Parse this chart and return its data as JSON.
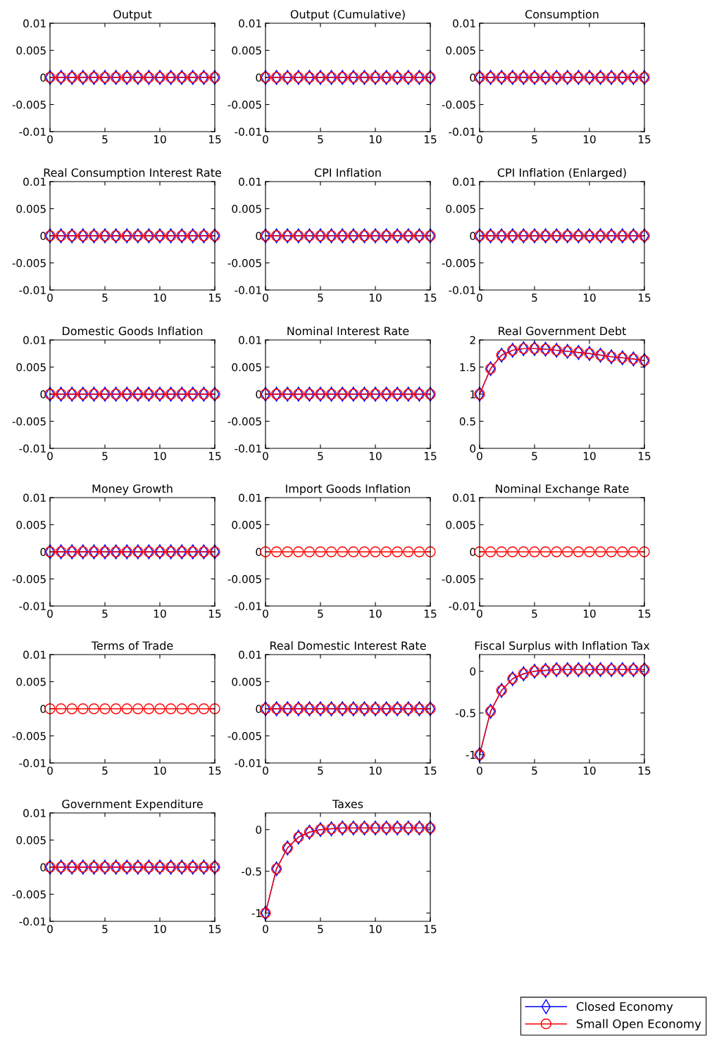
{
  "chart_data": [
    {
      "type": "line",
      "title": "Output",
      "x": [
        0,
        1,
        2,
        3,
        4,
        5,
        6,
        7,
        8,
        9,
        10,
        11,
        12,
        13,
        14,
        15
      ],
      "xlim": [
        0,
        15
      ],
      "xticks": [
        0,
        5,
        10,
        15
      ],
      "ylim": [
        -0.01,
        0.01
      ],
      "yticks": [
        -0.01,
        -0.005,
        0,
        0.005,
        0.01
      ],
      "line_style": "solid",
      "legend": "bottom right",
      "series": [
        {
          "name": "Closed Economy",
          "color": "#0000ff",
          "marker": "diamond",
          "values": [
            0,
            0,
            0,
            0,
            0,
            0,
            0,
            0,
            0,
            0,
            0,
            0,
            0,
            0,
            0,
            0
          ]
        },
        {
          "name": "Small Open Economy",
          "color": "#ff0000",
          "marker": "circle",
          "values": [
            0,
            0,
            0,
            0,
            0,
            0,
            0,
            0,
            0,
            0,
            0,
            0,
            0,
            0,
            0,
            0
          ]
        }
      ]
    },
    {
      "type": "line",
      "title": "Output (Cumulative)",
      "x": [
        0,
        1,
        2,
        3,
        4,
        5,
        6,
        7,
        8,
        9,
        10,
        11,
        12,
        13,
        14,
        15
      ],
      "xlim": [
        0,
        15
      ],
      "xticks": [
        0,
        5,
        10,
        15
      ],
      "ylim": [
        -0.01,
        0.01
      ],
      "yticks": [
        -0.01,
        -0.005,
        0,
        0.005,
        0.01
      ],
      "line_style": "solid",
      "series": [
        {
          "color": "#0000ff",
          "marker": "diamond",
          "values": [
            0,
            0,
            0,
            0,
            0,
            0,
            0,
            0,
            0,
            0,
            0,
            0,
            0,
            0,
            0,
            0
          ]
        },
        {
          "color": "#ff0000",
          "marker": "circle",
          "values": [
            0,
            0,
            0,
            0,
            0,
            0,
            0,
            0,
            0,
            0,
            0,
            0,
            0,
            0,
            0,
            0
          ]
        }
      ]
    },
    {
      "type": "line",
      "title": "Consumption",
      "x": [
        0,
        1,
        2,
        3,
        4,
        5,
        6,
        7,
        8,
        9,
        10,
        11,
        12,
        13,
        14,
        15
      ],
      "xlim": [
        0,
        15
      ],
      "xticks": [
        0,
        5,
        10,
        15
      ],
      "ylim": [
        -0.01,
        0.01
      ],
      "yticks": [
        -0.01,
        -0.005,
        0,
        0.005,
        0.01
      ],
      "line_style": "solid",
      "series": [
        {
          "color": "#0000ff",
          "marker": "diamond",
          "values": [
            0,
            0,
            0,
            0,
            0,
            0,
            0,
            0,
            0,
            0,
            0,
            0,
            0,
            0,
            0,
            0
          ]
        },
        {
          "color": "#ff0000",
          "marker": "circle",
          "values": [
            0,
            0,
            0,
            0,
            0,
            0,
            0,
            0,
            0,
            0,
            0,
            0,
            0,
            0,
            0,
            0
          ]
        }
      ]
    },
    {
      "type": "line",
      "title": "Real Consumption Interest Rate",
      "x": [
        0,
        1,
        2,
        3,
        4,
        5,
        6,
        7,
        8,
        9,
        10,
        11,
        12,
        13,
        14,
        15
      ],
      "xlim": [
        0,
        15
      ],
      "xticks": [
        0,
        5,
        10,
        15
      ],
      "ylim": [
        -0.01,
        0.01
      ],
      "yticks": [
        -0.01,
        -0.005,
        0,
        0.005,
        0.01
      ],
      "line_style": "solid",
      "series": [
        {
          "color": "#0000ff",
          "marker": "diamond",
          "values": [
            0,
            0,
            0,
            0,
            0,
            0,
            0,
            0,
            0,
            0,
            0,
            0,
            0,
            0,
            0,
            0
          ]
        },
        {
          "color": "#ff0000",
          "marker": "circle",
          "values": [
            0,
            0,
            0,
            0,
            0,
            0,
            0,
            0,
            0,
            0,
            0,
            0,
            0,
            0,
            0,
            0
          ]
        }
      ]
    },
    {
      "type": "line",
      "title": "CPI Inflation",
      "x": [
        0,
        1,
        2,
        3,
        4,
        5,
        6,
        7,
        8,
        9,
        10,
        11,
        12,
        13,
        14,
        15
      ],
      "xlim": [
        0,
        15
      ],
      "xticks": [
        0,
        5,
        10,
        15
      ],
      "ylim": [
        -0.01,
        0.01
      ],
      "yticks": [
        -0.01,
        -0.005,
        0,
        0.005,
        0.01
      ],
      "line_style": "solid",
      "series": [
        {
          "color": "#0000ff",
          "marker": "diamond",
          "values": [
            0,
            0,
            0,
            0,
            0,
            0,
            0,
            0,
            0,
            0,
            0,
            0,
            0,
            0,
            0,
            0
          ]
        },
        {
          "color": "#ff0000",
          "marker": "circle",
          "values": [
            0,
            0,
            0,
            0,
            0,
            0,
            0,
            0,
            0,
            0,
            0,
            0,
            0,
            0,
            0,
            0
          ]
        }
      ]
    },
    {
      "type": "line",
      "title": "CPI Inflation (Enlarged)",
      "x": [
        0,
        1,
        2,
        3,
        4,
        5,
        6,
        7,
        8,
        9,
        10,
        11,
        12,
        13,
        14,
        15
      ],
      "xlim": [
        0,
        15
      ],
      "xticks": [
        0,
        5,
        10,
        15
      ],
      "ylim": [
        -0.01,
        0.01
      ],
      "yticks": [
        -0.01,
        -0.005,
        0,
        0.005,
        0.01
      ],
      "line_style": "solid",
      "series": [
        {
          "color": "#0000ff",
          "marker": "diamond",
          "values": [
            0,
            0,
            0,
            0,
            0,
            0,
            0,
            0,
            0,
            0,
            0,
            0,
            0,
            0,
            0,
            0
          ]
        },
        {
          "color": "#ff0000",
          "marker": "circle",
          "values": [
            0,
            0,
            0,
            0,
            0,
            0,
            0,
            0,
            0,
            0,
            0,
            0,
            0,
            0,
            0,
            0
          ]
        }
      ]
    },
    {
      "type": "line",
      "title": "Domestic Goods Inflation",
      "x": [
        0,
        1,
        2,
        3,
        4,
        5,
        6,
        7,
        8,
        9,
        10,
        11,
        12,
        13,
        14,
        15
      ],
      "xlim": [
        0,
        15
      ],
      "xticks": [
        0,
        5,
        10,
        15
      ],
      "ylim": [
        -0.01,
        0.01
      ],
      "yticks": [
        -0.01,
        -0.005,
        0,
        0.005,
        0.01
      ],
      "line_style": "solid",
      "series": [
        {
          "color": "#0000ff",
          "marker": "diamond",
          "values": [
            0,
            0,
            0,
            0,
            0,
            0,
            0,
            0,
            0,
            0,
            0,
            0,
            0,
            0,
            0,
            0
          ]
        },
        {
          "color": "#ff0000",
          "marker": "circle",
          "values": [
            0,
            0,
            0,
            0,
            0,
            0,
            0,
            0,
            0,
            0,
            0,
            0,
            0,
            0,
            0,
            0
          ]
        }
      ]
    },
    {
      "type": "line",
      "title": "Nominal Interest Rate",
      "x": [
        0,
        1,
        2,
        3,
        4,
        5,
        6,
        7,
        8,
        9,
        10,
        11,
        12,
        13,
        14,
        15
      ],
      "xlim": [
        0,
        15
      ],
      "xticks": [
        0,
        5,
        10,
        15
      ],
      "ylim": [
        -0.01,
        0.01
      ],
      "yticks": [
        -0.01,
        -0.005,
        0,
        0.005,
        0.01
      ],
      "line_style": "solid",
      "series": [
        {
          "color": "#0000ff",
          "marker": "diamond",
          "values": [
            0,
            0,
            0,
            0,
            0,
            0,
            0,
            0,
            0,
            0,
            0,
            0,
            0,
            0,
            0,
            0
          ]
        },
        {
          "color": "#ff0000",
          "marker": "circle",
          "values": [
            0,
            0,
            0,
            0,
            0,
            0,
            0,
            0,
            0,
            0,
            0,
            0,
            0,
            0,
            0,
            0
          ]
        }
      ]
    },
    {
      "type": "line",
      "title": "Real Government Debt",
      "x": [
        0,
        1,
        2,
        3,
        4,
        5,
        6,
        7,
        8,
        9,
        10,
        11,
        12,
        13,
        14,
        15
      ],
      "xlim": [
        0,
        15
      ],
      "xticks": [
        0,
        5,
        10,
        15
      ],
      "ylim": [
        0,
        2
      ],
      "yticks": [
        0,
        0.5,
        1,
        1.5,
        2
      ],
      "line_style": "solid",
      "series": [
        {
          "color": "#0000ff",
          "marker": "diamond",
          "values": [
            1,
            1.47,
            1.72,
            1.81,
            1.84,
            1.84,
            1.83,
            1.81,
            1.79,
            1.77,
            1.75,
            1.72,
            1.69,
            1.67,
            1.65,
            1.62
          ]
        },
        {
          "color": "#ff0000",
          "marker": "circle",
          "values": [
            1,
            1.47,
            1.72,
            1.81,
            1.84,
            1.84,
            1.83,
            1.81,
            1.79,
            1.77,
            1.75,
            1.72,
            1.69,
            1.67,
            1.65,
            1.62
          ]
        }
      ]
    },
    {
      "type": "line",
      "title": "Money Growth",
      "x": [
        0,
        1,
        2,
        3,
        4,
        5,
        6,
        7,
        8,
        9,
        10,
        11,
        12,
        13,
        14,
        15
      ],
      "xlim": [
        0,
        15
      ],
      "xticks": [
        0,
        5,
        10,
        15
      ],
      "ylim": [
        -0.01,
        0.01
      ],
      "yticks": [
        -0.01,
        -0.005,
        0,
        0.005,
        0.01
      ],
      "line_style": "solid",
      "series": [
        {
          "color": "#0000ff",
          "marker": "diamond",
          "values": [
            0,
            0,
            0,
            0,
            0,
            0,
            0,
            0,
            0,
            0,
            0,
            0,
            0,
            0,
            0,
            0
          ]
        },
        {
          "color": "#ff0000",
          "marker": "circle",
          "values": [
            0,
            0,
            0,
            0,
            0,
            0,
            0,
            0,
            0,
            0,
            0,
            0,
            0,
            0,
            0,
            0
          ]
        }
      ]
    },
    {
      "type": "line",
      "title": "Import Goods Inflation",
      "x": [
        0,
        1,
        2,
        3,
        4,
        5,
        6,
        7,
        8,
        9,
        10,
        11,
        12,
        13,
        14,
        15
      ],
      "xlim": [
        0,
        15
      ],
      "xticks": [
        0,
        5,
        10,
        15
      ],
      "ylim": [
        -0.01,
        0.01
      ],
      "yticks": [
        -0.01,
        -0.005,
        0,
        0.005,
        0.01
      ],
      "line_style": "solid",
      "series": [
        {
          "color": "#ff0000",
          "marker": "circle",
          "values": [
            0,
            0,
            0,
            0,
            0,
            0,
            0,
            0,
            0,
            0,
            0,
            0,
            0,
            0,
            0,
            0
          ]
        }
      ]
    },
    {
      "type": "line",
      "title": "Nominal Exchange Rate",
      "x": [
        0,
        1,
        2,
        3,
        4,
        5,
        6,
        7,
        8,
        9,
        10,
        11,
        12,
        13,
        14,
        15
      ],
      "xlim": [
        0,
        15
      ],
      "xticks": [
        0,
        5,
        10,
        15
      ],
      "ylim": [
        -0.01,
        0.01
      ],
      "yticks": [
        -0.01,
        -0.005,
        0,
        0.005,
        0.01
      ],
      "line_style": "solid",
      "series": [
        {
          "color": "#ff0000",
          "marker": "circle",
          "values": [
            0,
            0,
            0,
            0,
            0,
            0,
            0,
            0,
            0,
            0,
            0,
            0,
            0,
            0,
            0,
            0
          ]
        }
      ]
    },
    {
      "type": "line",
      "title": "Terms of Trade",
      "x": [
        0,
        1,
        2,
        3,
        4,
        5,
        6,
        7,
        8,
        9,
        10,
        11,
        12,
        13,
        14,
        15
      ],
      "xlim": [
        0,
        15
      ],
      "xticks": [
        0,
        5,
        10,
        15
      ],
      "ylim": [
        -0.01,
        0.01
      ],
      "yticks": [
        -0.01,
        -0.005,
        0,
        0.005,
        0.01
      ],
      "line_style": "solid",
      "series": [
        {
          "color": "#ff0000",
          "marker": "circle",
          "values": [
            0,
            0,
            0,
            0,
            0,
            0,
            0,
            0,
            0,
            0,
            0,
            0,
            0,
            0,
            0,
            0
          ]
        }
      ]
    },
    {
      "type": "line",
      "title": "Real Domestic Interest Rate",
      "x": [
        0,
        1,
        2,
        3,
        4,
        5,
        6,
        7,
        8,
        9,
        10,
        11,
        12,
        13,
        14,
        15
      ],
      "xlim": [
        0,
        15
      ],
      "xticks": [
        0,
        5,
        10,
        15
      ],
      "ylim": [
        -0.01,
        0.01
      ],
      "yticks": [
        -0.01,
        -0.005,
        0,
        0.005,
        0.01
      ],
      "line_style": "solid",
      "series": [
        {
          "color": "#0000ff",
          "marker": "diamond",
          "values": [
            0,
            0,
            0,
            0,
            0,
            0,
            0,
            0,
            0,
            0,
            0,
            0,
            0,
            0,
            0,
            0
          ]
        },
        {
          "color": "#ff0000",
          "marker": "circle",
          "values": [
            0,
            0,
            0,
            0,
            0,
            0,
            0,
            0,
            0,
            0,
            0,
            0,
            0,
            0,
            0,
            0
          ]
        }
      ]
    },
    {
      "type": "line",
      "title": "Fiscal Surplus with Inflation Tax",
      "x": [
        0,
        1,
        2,
        3,
        4,
        5,
        6,
        7,
        8,
        9,
        10,
        11,
        12,
        13,
        14,
        15
      ],
      "xlim": [
        0,
        15
      ],
      "xticks": [
        0,
        5,
        10,
        15
      ],
      "ylim": [
        -1.1,
        0.2
      ],
      "yticks": [
        -1,
        -0.5,
        0
      ],
      "line_style": "solid",
      "series": [
        {
          "color": "#0000ff",
          "marker": "diamond",
          "values": [
            -1,
            -0.48,
            -0.23,
            -0.09,
            -0.03,
            0,
            0.01,
            0.02,
            0.02,
            0.02,
            0.02,
            0.02,
            0.02,
            0.02,
            0.02,
            0.02
          ]
        },
        {
          "color": "#ff0000",
          "marker": "circle",
          "values": [
            -1,
            -0.48,
            -0.23,
            -0.09,
            -0.03,
            0,
            0.01,
            0.02,
            0.02,
            0.02,
            0.02,
            0.02,
            0.02,
            0.02,
            0.02,
            0.02
          ]
        }
      ]
    },
    {
      "type": "line",
      "title": "Government Expenditure",
      "x": [
        0,
        1,
        2,
        3,
        4,
        5,
        6,
        7,
        8,
        9,
        10,
        11,
        12,
        13,
        14,
        15
      ],
      "xlim": [
        0,
        15
      ],
      "xticks": [
        0,
        5,
        10,
        15
      ],
      "ylim": [
        -0.01,
        0.01
      ],
      "yticks": [
        -0.01,
        -0.005,
        0,
        0.005,
        0.01
      ],
      "line_style": "solid",
      "series": [
        {
          "color": "#0000ff",
          "marker": "diamond",
          "values": [
            0,
            0,
            0,
            0,
            0,
            0,
            0,
            0,
            0,
            0,
            0,
            0,
            0,
            0,
            0,
            0
          ]
        },
        {
          "color": "#ff0000",
          "marker": "circle",
          "values": [
            0,
            0,
            0,
            0,
            0,
            0,
            0,
            0,
            0,
            0,
            0,
            0,
            0,
            0,
            0,
            0
          ]
        }
      ]
    },
    {
      "type": "line",
      "title": "Taxes",
      "x": [
        0,
        1,
        2,
        3,
        4,
        5,
        6,
        7,
        8,
        9,
        10,
        11,
        12,
        13,
        14,
        15
      ],
      "xlim": [
        0,
        15
      ],
      "xticks": [
        0,
        5,
        10,
        15
      ],
      "ylim": [
        -1.1,
        0.2
      ],
      "yticks": [
        -1,
        -0.5,
        0
      ],
      "line_style": "solid",
      "series": [
        {
          "color": "#0000ff",
          "marker": "diamond",
          "values": [
            -1,
            -0.47,
            -0.22,
            -0.09,
            -0.03,
            0,
            0.01,
            0.02,
            0.02,
            0.02,
            0.02,
            0.02,
            0.02,
            0.02,
            0.02,
            0.02
          ]
        },
        {
          "color": "#ff0000",
          "marker": "circle",
          "values": [
            -1,
            -0.47,
            -0.22,
            -0.09,
            -0.03,
            0,
            0.01,
            0.02,
            0.02,
            0.02,
            0.02,
            0.02,
            0.02,
            0.02,
            0.02,
            0.02
          ]
        }
      ]
    }
  ]
}
